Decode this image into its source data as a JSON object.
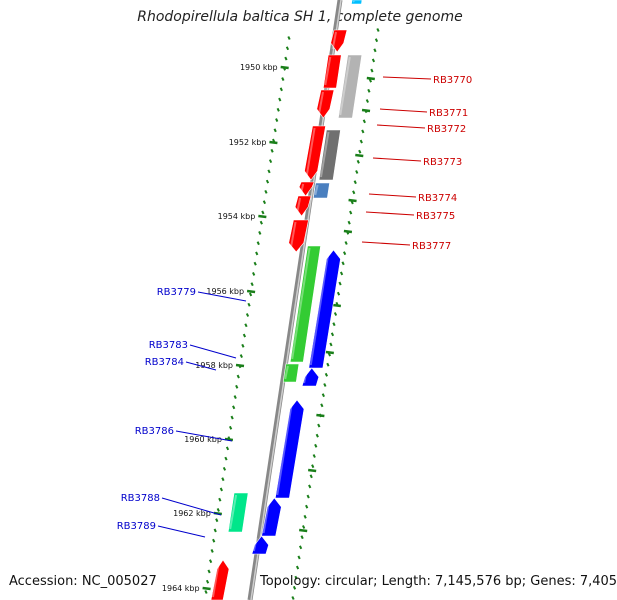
{
  "title": "Rhodopirellula baltica SH 1, complete genome",
  "footer": {
    "accession": "Accession: NC_005027",
    "topology": "Topology: circular; Length: 7,145,576 bp; Genes: 7,405"
  },
  "colors": {
    "forward_gene": "#ff0000",
    "reverse_gene": "#0000ff",
    "green_gene": "#33cc33",
    "teal_gene": "#00e68a",
    "gray_gene": "#b3b3b3",
    "dark_gray_gene": "#707070",
    "steelblue_gene": "#4a7fbf",
    "cyan_gene": "#00bfff",
    "scale_ticks": "#1a7f1a",
    "backbone": "#888888",
    "right_labels": "#cc0000",
    "left_labels": "#0000cc"
  },
  "scale_labels": [
    "1950 kbp",
    "1952 kbp",
    "1954 kbp",
    "1956 kbp",
    "1958 kbp",
    "1960 kbp",
    "1962 kbp",
    "1964 kbp"
  ],
  "right_gene_labels": [
    "RB3770",
    "RB3771",
    "RB3772",
    "RB3773",
    "RB3774",
    "RB3775",
    "RB3777"
  ],
  "left_gene_labels": [
    "RB3779",
    "RB3783",
    "RB3784",
    "RB3786",
    "RB3788",
    "RB3789"
  ]
}
